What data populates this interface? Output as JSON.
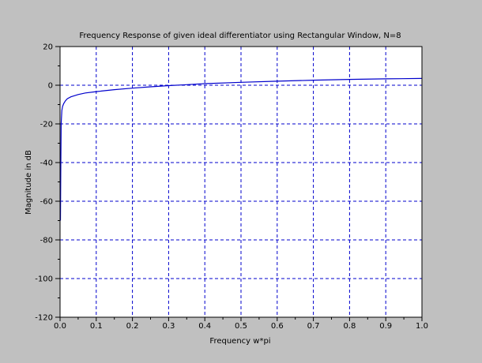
{
  "chart_data": {
    "type": "line",
    "title": "Frequency Response of given ideal differentiator using Rectangular Window, N=8",
    "xlabel": "Frequency w*pi",
    "ylabel": "Magnitude in dB",
    "xlim": [
      0,
      1
    ],
    "ylim": [
      -120,
      20
    ],
    "xticks": [
      0.0,
      0.1,
      0.2,
      0.3,
      0.4,
      0.5,
      0.6,
      0.7,
      0.8,
      0.9,
      1.0
    ],
    "xtick_labels": [
      "0.0",
      "0.1",
      "0.2",
      "0.3",
      "0.4",
      "0.5",
      "0.6",
      "0.7",
      "0.8",
      "0.9",
      "1.0"
    ],
    "yticks": [
      -120,
      -100,
      -80,
      -60,
      -40,
      -20,
      0,
      20
    ],
    "ytick_labels": [
      "-120",
      "-100",
      "-80",
      "-60",
      "-40",
      "-20",
      "0",
      "20"
    ],
    "grid": true,
    "colors": {
      "background": "#c0c0c0",
      "plot_area": "#ffffff",
      "series": "#0000cc",
      "grid": "#0000cc",
      "axes": "#000000"
    },
    "series": [
      {
        "x": [
          0.001,
          0.002,
          0.003,
          0.005,
          0.007,
          0.01,
          0.015,
          0.02,
          0.03,
          0.05,
          0.07,
          0.1,
          0.15,
          0.2,
          0.25,
          0.3,
          0.35,
          0.4,
          0.5,
          0.6,
          0.7,
          0.8,
          0.9,
          1.0
        ],
        "y": [
          -70,
          -45,
          -20,
          -13,
          -11,
          -9.5,
          -8,
          -7,
          -6,
          -4.8,
          -4,
          -3.3,
          -2.3,
          -1.5,
          -0.8,
          -0.2,
          0.3,
          0.8,
          1.5,
          2.1,
          2.6,
          3.0,
          3.3,
          3.5
        ]
      }
    ]
  }
}
